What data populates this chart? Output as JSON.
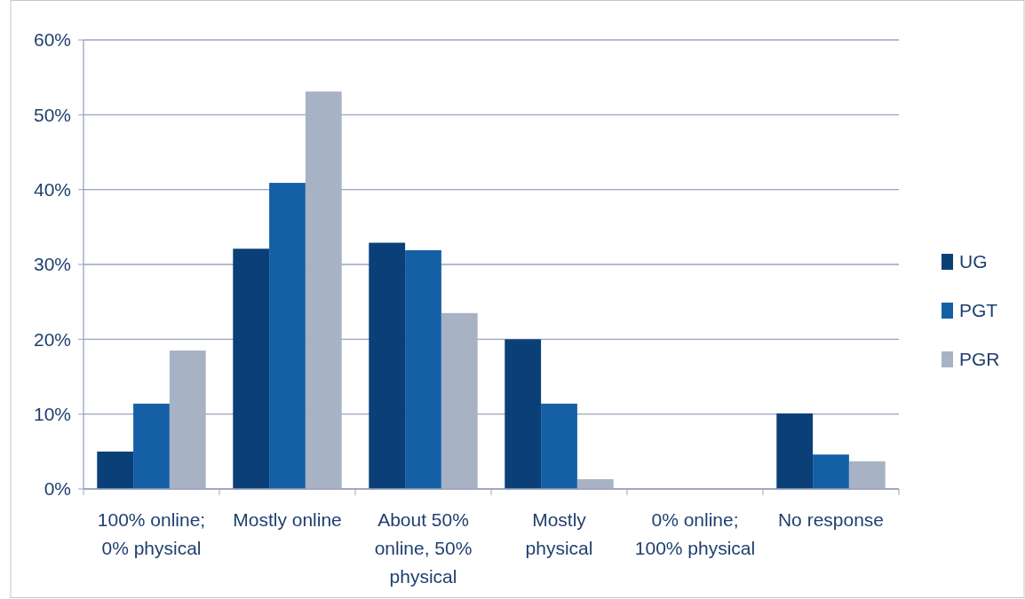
{
  "chart_data": {
    "type": "bar",
    "categories": [
      "100% online; 0% physical",
      "Mostly online",
      "About 50% online, 50% physical",
      "Mostly physical",
      "0% online; 100% physical",
      "No response"
    ],
    "series": [
      {
        "name": "UG",
        "color": "#0b3f78",
        "values": [
          5,
          32.1,
          32.9,
          20,
          0,
          10.1
        ]
      },
      {
        "name": "PGT",
        "color": "#155fa6",
        "values": [
          11.4,
          40.9,
          31.9,
          11.4,
          0,
          4.6
        ]
      },
      {
        "name": "PGR",
        "color": "#a8b2c5",
        "values": [
          18.5,
          53.1,
          23.5,
          1.3,
          0,
          3.7
        ]
      }
    ],
    "ylim": [
      0,
      60
    ],
    "yticks": [
      {
        "value": 0,
        "label": "0%"
      },
      {
        "value": 10,
        "label": "10%"
      },
      {
        "value": 20,
        "label": "20%"
      },
      {
        "value": 30,
        "label": "30%"
      },
      {
        "value": 40,
        "label": "40%"
      },
      {
        "value": 50,
        "label": "50%"
      },
      {
        "value": 60,
        "label": "60%"
      }
    ],
    "grid": "y",
    "legend": "right"
  }
}
